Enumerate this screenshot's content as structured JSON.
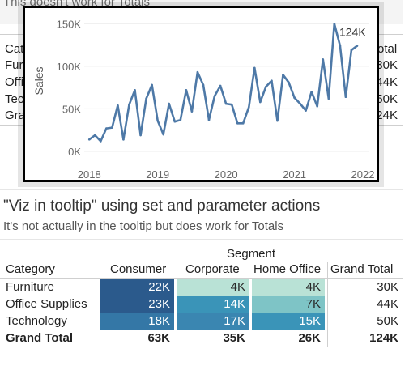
{
  "background": {
    "subtitle_partial": "This doesn't work for Totals",
    "rows": [
      {
        "label": "Cat",
        "value": "otal"
      },
      {
        "label": "Furni",
        "value": "30K"
      },
      {
        "label": "Offi",
        "value": "44K"
      },
      {
        "label": "Tech",
        "value": "50K"
      },
      {
        "label": "Gran",
        "value": "24K"
      }
    ]
  },
  "chart_data": {
    "type": "line",
    "title": "",
    "xlabel": "",
    "ylabel": "Sales",
    "x_ticks": [
      "2018",
      "2019",
      "2020",
      "2021",
      "2022"
    ],
    "y_ticks": [
      "0K",
      "50K",
      "100K",
      "150K"
    ],
    "ylim": [
      0,
      155000
    ],
    "grid": "horizontal",
    "end_label": "124K",
    "series": [
      {
        "color": "#4e79a7",
        "points": [
          {
            "x": "2018-01",
            "y": 14000
          },
          {
            "x": "2018-02",
            "y": 19000
          },
          {
            "x": "2018-03",
            "y": 12000
          },
          {
            "x": "2018-04",
            "y": 27000
          },
          {
            "x": "2018-05",
            "y": 28000
          },
          {
            "x": "2018-06",
            "y": 54000
          },
          {
            "x": "2018-07",
            "y": 14000
          },
          {
            "x": "2018-08",
            "y": 55000
          },
          {
            "x": "2018-09",
            "y": 72000
          },
          {
            "x": "2018-10",
            "y": 19000
          },
          {
            "x": "2018-11",
            "y": 62000
          },
          {
            "x": "2018-12",
            "y": 78000
          },
          {
            "x": "2019-01",
            "y": 36000
          },
          {
            "x": "2019-02",
            "y": 20000
          },
          {
            "x": "2019-03",
            "y": 56000
          },
          {
            "x": "2019-04",
            "y": 35000
          },
          {
            "x": "2019-05",
            "y": 37000
          },
          {
            "x": "2019-06",
            "y": 72000
          },
          {
            "x": "2019-07",
            "y": 47000
          },
          {
            "x": "2019-08",
            "y": 93000
          },
          {
            "x": "2019-09",
            "y": 78000
          },
          {
            "x": "2019-10",
            "y": 37000
          },
          {
            "x": "2019-11",
            "y": 65000
          },
          {
            "x": "2019-12",
            "y": 77000
          },
          {
            "x": "2020-01",
            "y": 56000
          },
          {
            "x": "2020-02",
            "y": 55000
          },
          {
            "x": "2020-03",
            "y": 33000
          },
          {
            "x": "2020-04",
            "y": 33000
          },
          {
            "x": "2020-05",
            "y": 52000
          },
          {
            "x": "2020-06",
            "y": 98000
          },
          {
            "x": "2020-07",
            "y": 58000
          },
          {
            "x": "2020-08",
            "y": 76000
          },
          {
            "x": "2020-09",
            "y": 83000
          },
          {
            "x": "2020-10",
            "y": 36000
          },
          {
            "x": "2020-11",
            "y": 90000
          },
          {
            "x": "2020-12",
            "y": 81000
          },
          {
            "x": "2021-01",
            "y": 63000
          },
          {
            "x": "2021-02",
            "y": 56000
          },
          {
            "x": "2021-03",
            "y": 48000
          },
          {
            "x": "2021-04",
            "y": 70000
          },
          {
            "x": "2021-05",
            "y": 53000
          },
          {
            "x": "2021-06",
            "y": 108000
          },
          {
            "x": "2021-07",
            "y": 62000
          },
          {
            "x": "2021-08",
            "y": 150000
          },
          {
            "x": "2021-09",
            "y": 124000
          },
          {
            "x": "2021-10",
            "y": 64000
          },
          {
            "x": "2021-11",
            "y": 119000
          },
          {
            "x": "2021-12",
            "y": 124000
          }
        ]
      }
    ]
  },
  "viz": {
    "title": "\"Viz in tooltip\" using set and parameter actions",
    "subtitle": "It's not actually in the tooltip but does work for Totals"
  },
  "crosstab": {
    "segment_title": "Segment",
    "category_header": "Category",
    "columns": [
      "Consumer",
      "Corporate",
      "Home Office",
      "Grand Total"
    ],
    "rows": [
      {
        "label": "Furniture",
        "values": [
          "22K",
          "4K",
          "4K",
          "30K"
        ],
        "colors": [
          "#2b5a8c",
          "#b9e2d6",
          "#b9e2d6"
        ]
      },
      {
        "label": "Office Supplies",
        "values": [
          "23K",
          "14K",
          "7K",
          "44K"
        ],
        "colors": [
          "#2b5a8c",
          "#3a94b8",
          "#7ec4c6"
        ]
      },
      {
        "label": "Technology",
        "values": [
          "18K",
          "17K",
          "15K",
          "50K"
        ],
        "colors": [
          "#3477a6",
          "#3a86b1",
          "#3a94b8"
        ]
      }
    ],
    "grand_total": {
      "label": "Grand Total",
      "values": [
        "63K",
        "35K",
        "26K",
        "124K"
      ]
    }
  }
}
